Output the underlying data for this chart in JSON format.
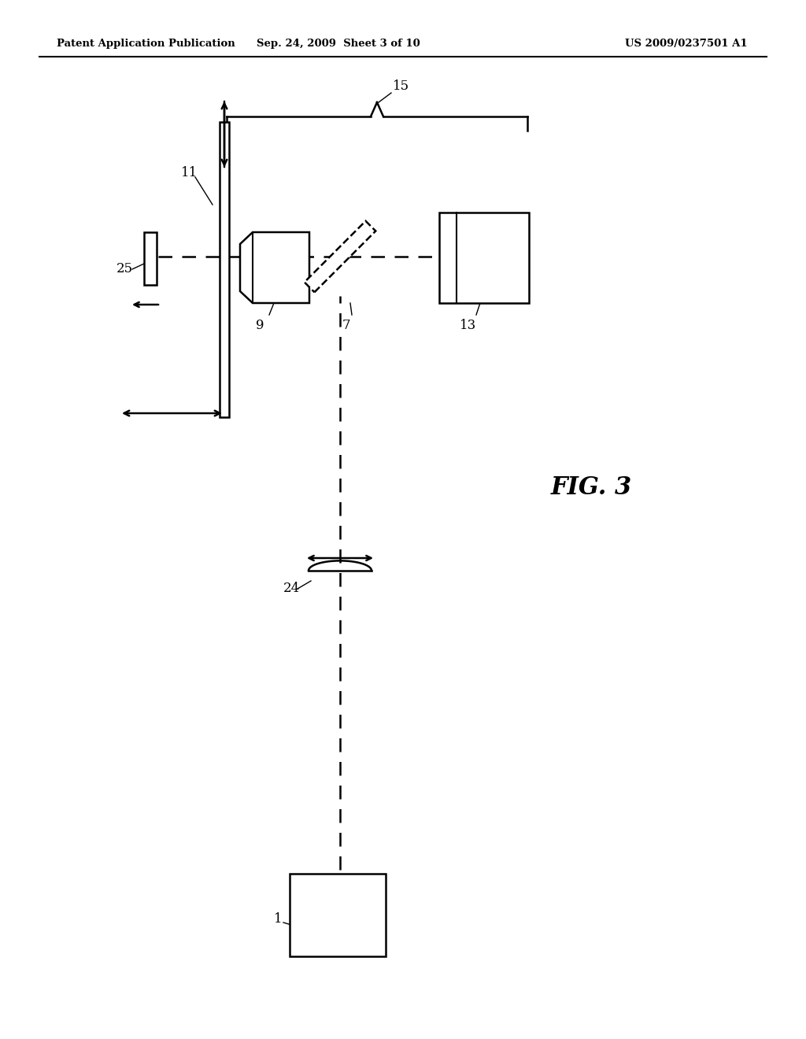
{
  "header_left": "Patent Application Publication",
  "header_mid": "Sep. 24, 2009  Sheet 3 of 10",
  "header_right": "US 2009/0237501 A1",
  "fig_label": "FIG. 3"
}
